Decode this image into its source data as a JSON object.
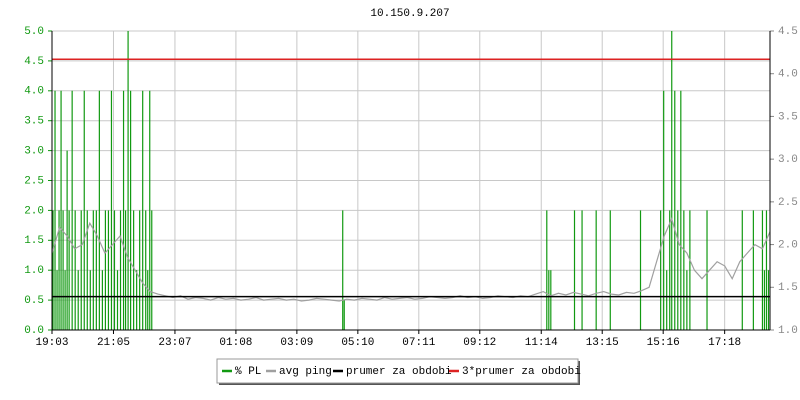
{
  "chart_data": {
    "type": "line",
    "title": "10.150.9.207",
    "xlim": [
      0,
      1425
    ],
    "xticks": [
      {
        "value": 0,
        "label": "19:03"
      },
      {
        "value": 122,
        "label": "21:05"
      },
      {
        "value": 244,
        "label": "23:07"
      },
      {
        "value": 365,
        "label": "01:08"
      },
      {
        "value": 486,
        "label": "03:09"
      },
      {
        "value": 607,
        "label": "05:10"
      },
      {
        "value": 728,
        "label": "07:11"
      },
      {
        "value": 849,
        "label": "09:12"
      },
      {
        "value": 971,
        "label": "11:14"
      },
      {
        "value": 1092,
        "label": "13:15"
      },
      {
        "value": 1213,
        "label": "15:16"
      },
      {
        "value": 1335,
        "label": "17:18"
      }
    ],
    "ylim": [
      0,
      5
    ],
    "yticks": [
      {
        "value": 0,
        "label": "0.0"
      },
      0.5,
      {
        "value": 1,
        "label": "1.0"
      },
      1.5,
      {
        "value": 2,
        "label": "2.0"
      },
      2.5,
      {
        "value": 3,
        "label": "3.0"
      },
      3.5,
      {
        "value": 4,
        "label": "4.0"
      },
      4.5,
      {
        "value": 5,
        "label": "5.0"
      }
    ],
    "y2lim": [
      1,
      4.5
    ],
    "y2ticks": [
      {
        "value": 1,
        "label": "1.0"
      },
      1.5,
      {
        "value": 2,
        "label": "2.0"
      },
      2.5,
      {
        "value": 3,
        "label": "3.0"
      },
      3.5,
      {
        "value": 4,
        "label": "4.0"
      },
      4.5
    ],
    "grid": true,
    "series": [
      {
        "name": "% PL",
        "color": "#119911",
        "style": "spikes",
        "x": [
          2,
          6,
          10,
          14,
          18,
          22,
          26,
          30,
          34,
          40,
          46,
          52,
          58,
          64,
          70,
          76,
          82,
          88,
          94,
          100,
          106,
          112,
          118,
          124,
          130,
          136,
          142,
          146,
          151,
          156,
          162,
          168,
          174,
          180,
          186,
          190,
          194,
          198,
          577,
          580,
          982,
          986,
          990,
          1037,
          1052,
          1080,
          1108,
          1168,
          1208,
          1214,
          1220,
          1226,
          1230,
          1236,
          1242,
          1248,
          1254,
          1260,
          1266,
          1300,
          1370,
          1392,
          1410,
          1414,
          1418,
          1422
        ],
        "values": [
          2,
          4,
          1,
          2,
          4,
          2,
          1,
          3,
          2,
          4,
          2,
          1,
          2,
          4,
          2,
          1,
          2,
          2,
          4,
          1,
          2,
          2,
          4,
          2,
          1,
          2,
          4,
          2,
          5,
          4,
          2,
          1,
          2,
          4,
          2,
          1,
          4,
          2,
          2,
          0.5,
          2,
          1,
          1,
          2,
          2,
          2,
          2,
          2,
          2,
          4,
          1,
          2,
          5,
          4,
          2,
          4,
          2,
          1,
          2,
          2,
          2,
          2,
          2,
          1,
          2,
          1
        ]
      },
      {
        "name": "avg ping",
        "color": "#a0a0a0",
        "axis": "y2",
        "style": "line",
        "x": [
          0,
          15,
          30,
          45,
          60,
          75,
          90,
          105,
          120,
          135,
          150,
          165,
          180,
          195,
          210,
          225,
          240,
          255,
          270,
          285,
          300,
          315,
          330,
          345,
          360,
          375,
          390,
          405,
          420,
          435,
          450,
          465,
          480,
          495,
          510,
          525,
          540,
          555,
          570,
          585,
          600,
          615,
          630,
          645,
          660,
          675,
          690,
          705,
          720,
          735,
          750,
          765,
          780,
          795,
          810,
          825,
          840,
          855,
          870,
          885,
          900,
          915,
          930,
          945,
          960,
          975,
          990,
          1005,
          1020,
          1035,
          1050,
          1065,
          1080,
          1095,
          1110,
          1125,
          1140,
          1155,
          1170,
          1185,
          1200,
          1215,
          1230,
          1245,
          1260,
          1275,
          1290,
          1305,
          1320,
          1335,
          1350,
          1365,
          1380,
          1395,
          1410,
          1425
        ],
        "values": [
          1.9,
          2.2,
          2.1,
          1.95,
          2.0,
          2.25,
          2.1,
          1.9,
          2.0,
          2.1,
          1.85,
          1.7,
          1.55,
          1.45,
          1.42,
          1.4,
          1.38,
          1.4,
          1.36,
          1.38,
          1.37,
          1.35,
          1.38,
          1.36,
          1.37,
          1.35,
          1.36,
          1.38,
          1.35,
          1.36,
          1.37,
          1.35,
          1.36,
          1.34,
          1.35,
          1.37,
          1.36,
          1.35,
          1.34,
          1.36,
          1.35,
          1.37,
          1.36,
          1.35,
          1.38,
          1.36,
          1.37,
          1.38,
          1.36,
          1.37,
          1.39,
          1.38,
          1.37,
          1.38,
          1.4,
          1.38,
          1.39,
          1.37,
          1.38,
          1.4,
          1.39,
          1.38,
          1.4,
          1.39,
          1.42,
          1.45,
          1.4,
          1.43,
          1.41,
          1.44,
          1.42,
          1.4,
          1.43,
          1.45,
          1.42,
          1.41,
          1.44,
          1.43,
          1.46,
          1.5,
          1.8,
          2.1,
          2.3,
          2.0,
          1.9,
          1.7,
          1.6,
          1.7,
          1.8,
          1.75,
          1.6,
          1.8,
          1.9,
          2.0,
          1.95,
          2.15
        ]
      },
      {
        "name": "prumer za obdobi",
        "color": "#000000",
        "axis": "y2",
        "style": "hline",
        "values": [
          1.39
        ]
      },
      {
        "name": "3*prumer za obdobi",
        "color": "#dd2222",
        "axis": "y2",
        "style": "hline",
        "values": [
          4.17
        ]
      }
    ]
  }
}
